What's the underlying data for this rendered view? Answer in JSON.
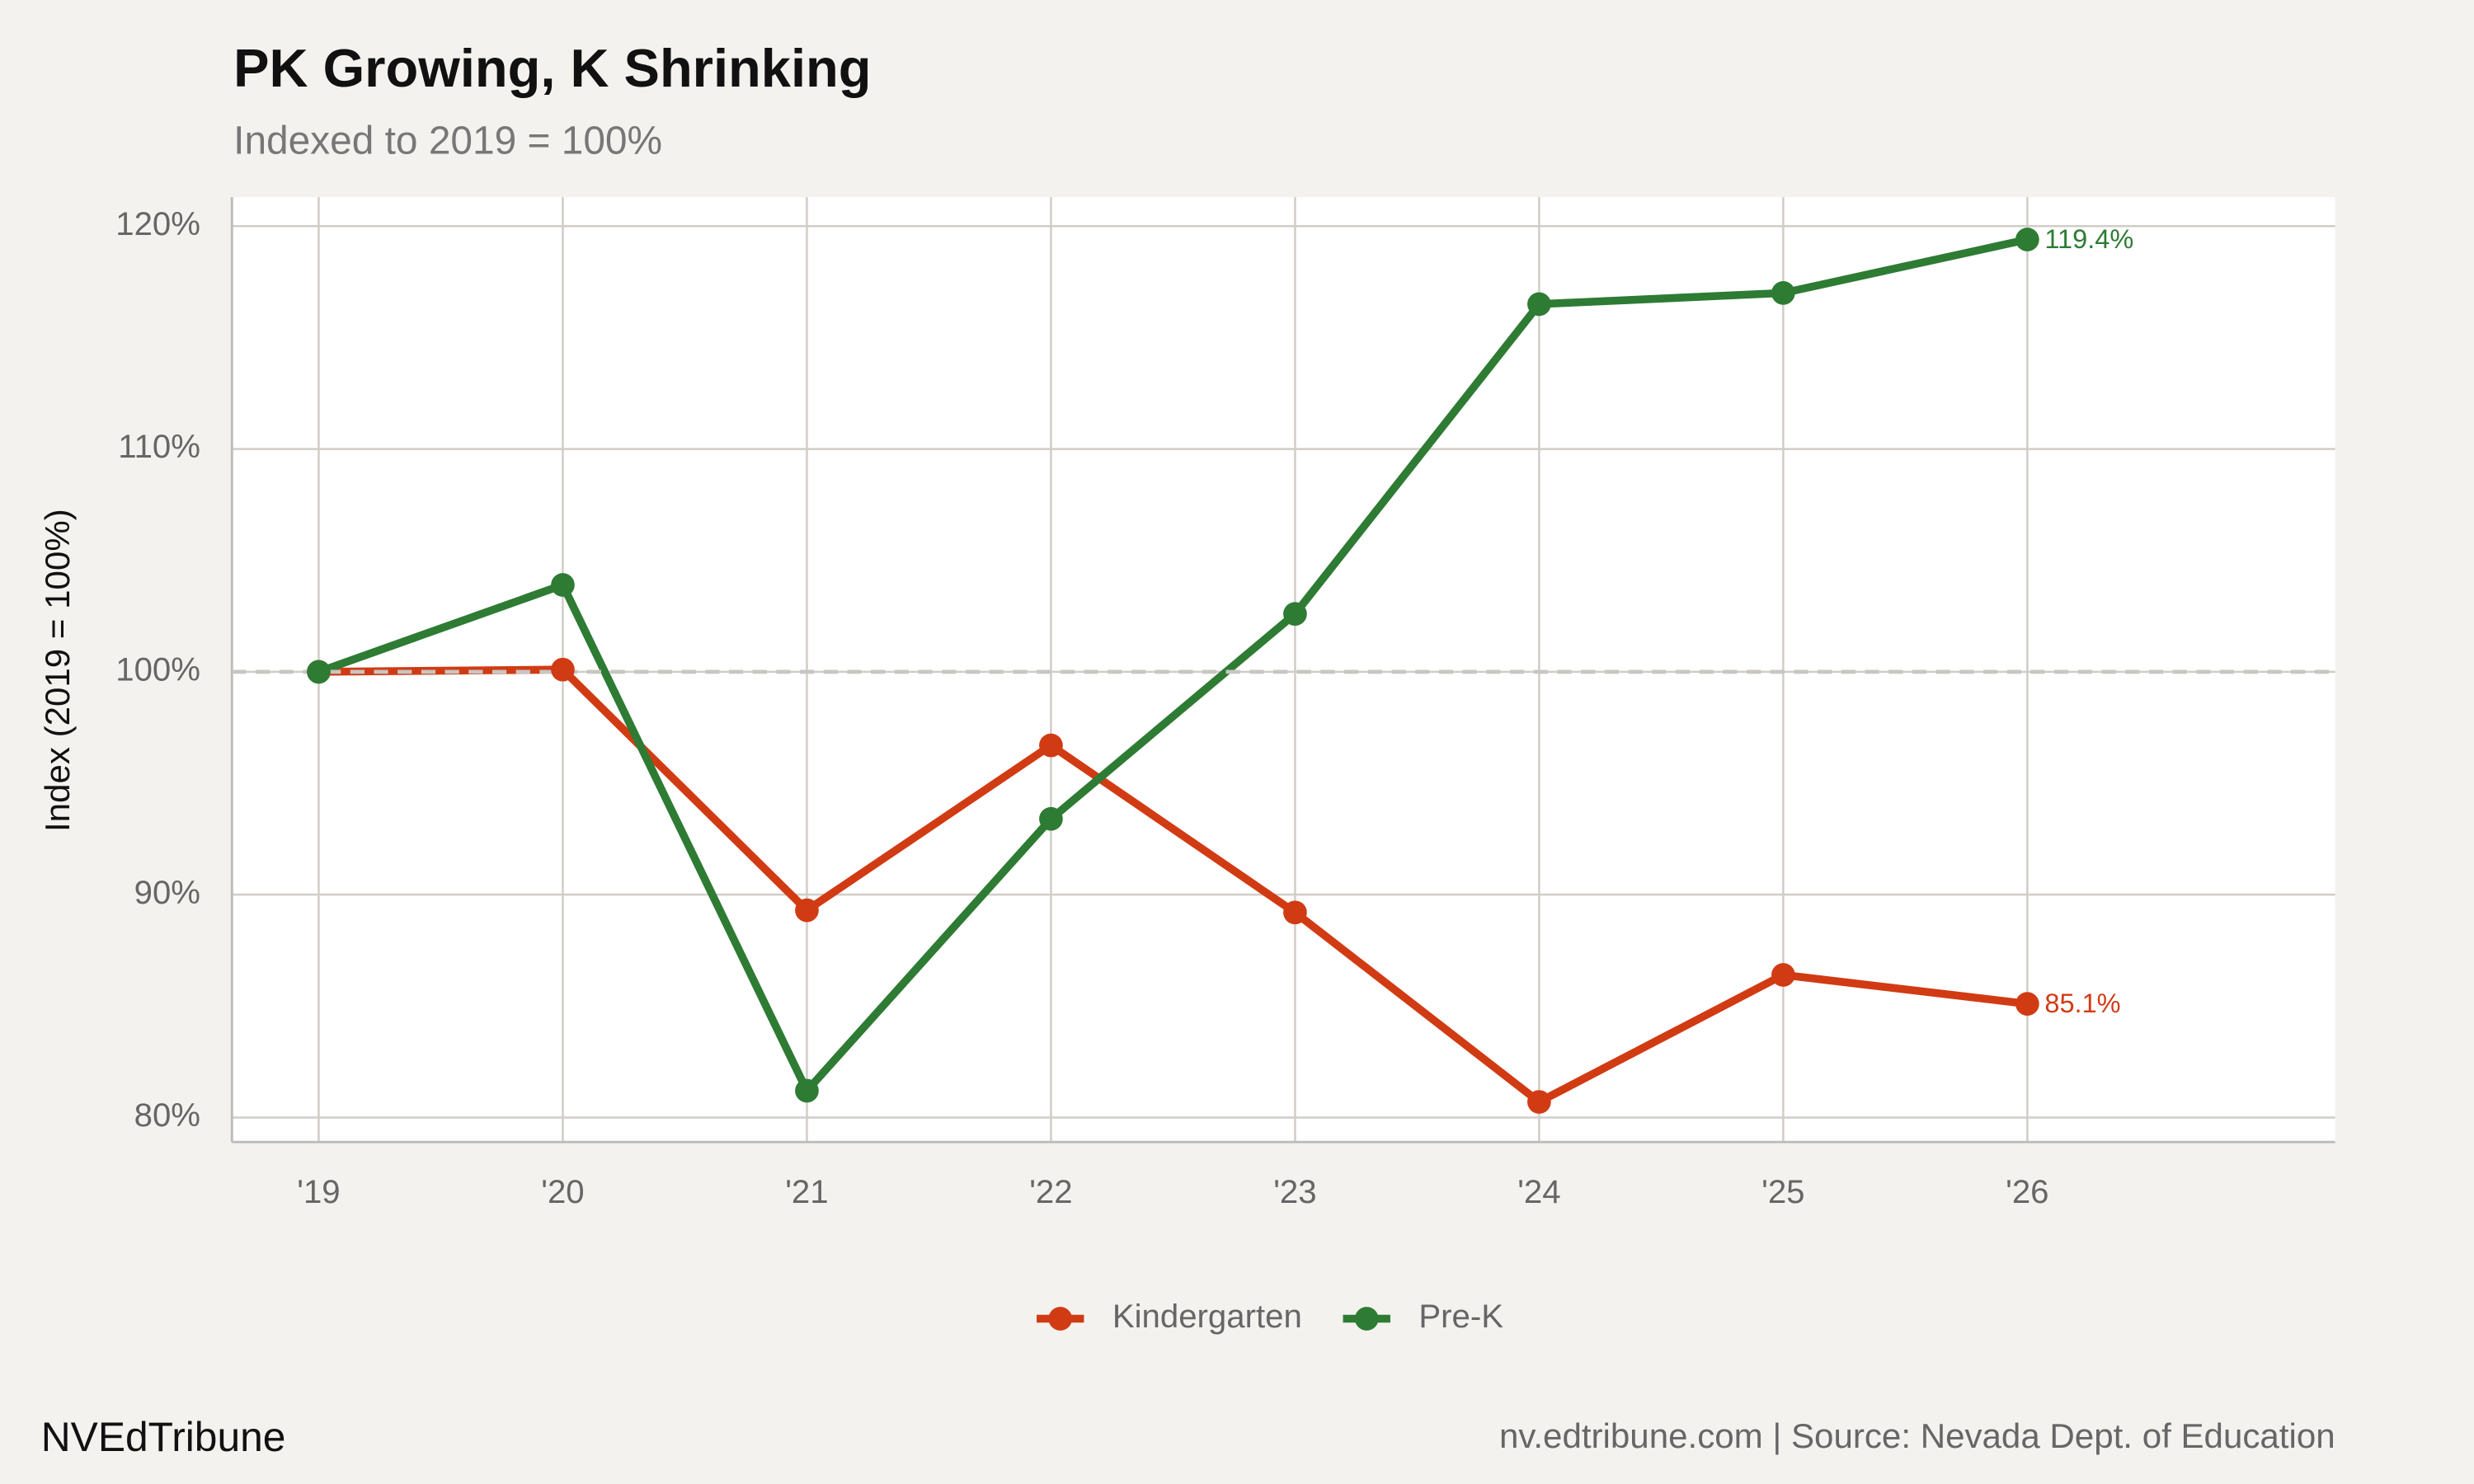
{
  "chart_data": {
    "type": "line",
    "title": "PK Growing, K Shrinking",
    "subtitle": "Indexed to 2019 = 100%",
    "y_label": "Index (2019 = 100%)",
    "categories": [
      "'19",
      "'20",
      "'21",
      "'22",
      "'23",
      "'24",
      "'25",
      "'26"
    ],
    "series": [
      {
        "name": "Kindergarten",
        "color": "#d13b14",
        "values": [
          100,
          100.1,
          89.3,
          96.7,
          89.2,
          80.7,
          86.4,
          85.1
        ],
        "value_labels": [
          null,
          null,
          null,
          null,
          null,
          null,
          null,
          "85.1%"
        ]
      },
      {
        "name": "Pre-K",
        "color": "#2e7b34",
        "values": [
          100,
          103.9,
          81.2,
          93.4,
          102.6,
          116.5,
          117.0,
          119.4
        ],
        "value_labels": [
          null,
          null,
          null,
          null,
          null,
          null,
          null,
          "119.4%"
        ]
      }
    ],
    "ylim": [
      78.9,
      121.3
    ],
    "yticks": [
      {
        "value": 80,
        "label": "80%"
      },
      {
        "value": 90,
        "label": "90%"
      },
      {
        "value": 100,
        "label": "100%"
      },
      {
        "value": 110,
        "label": "110%"
      },
      {
        "value": 120,
        "label": "120%"
      }
    ],
    "reference_line": 100,
    "grid": true,
    "legend": "bottom",
    "brand": "NVEdTribune",
    "source": "nv.edtribune.com | Source: Nevada Dept. of Education"
  }
}
